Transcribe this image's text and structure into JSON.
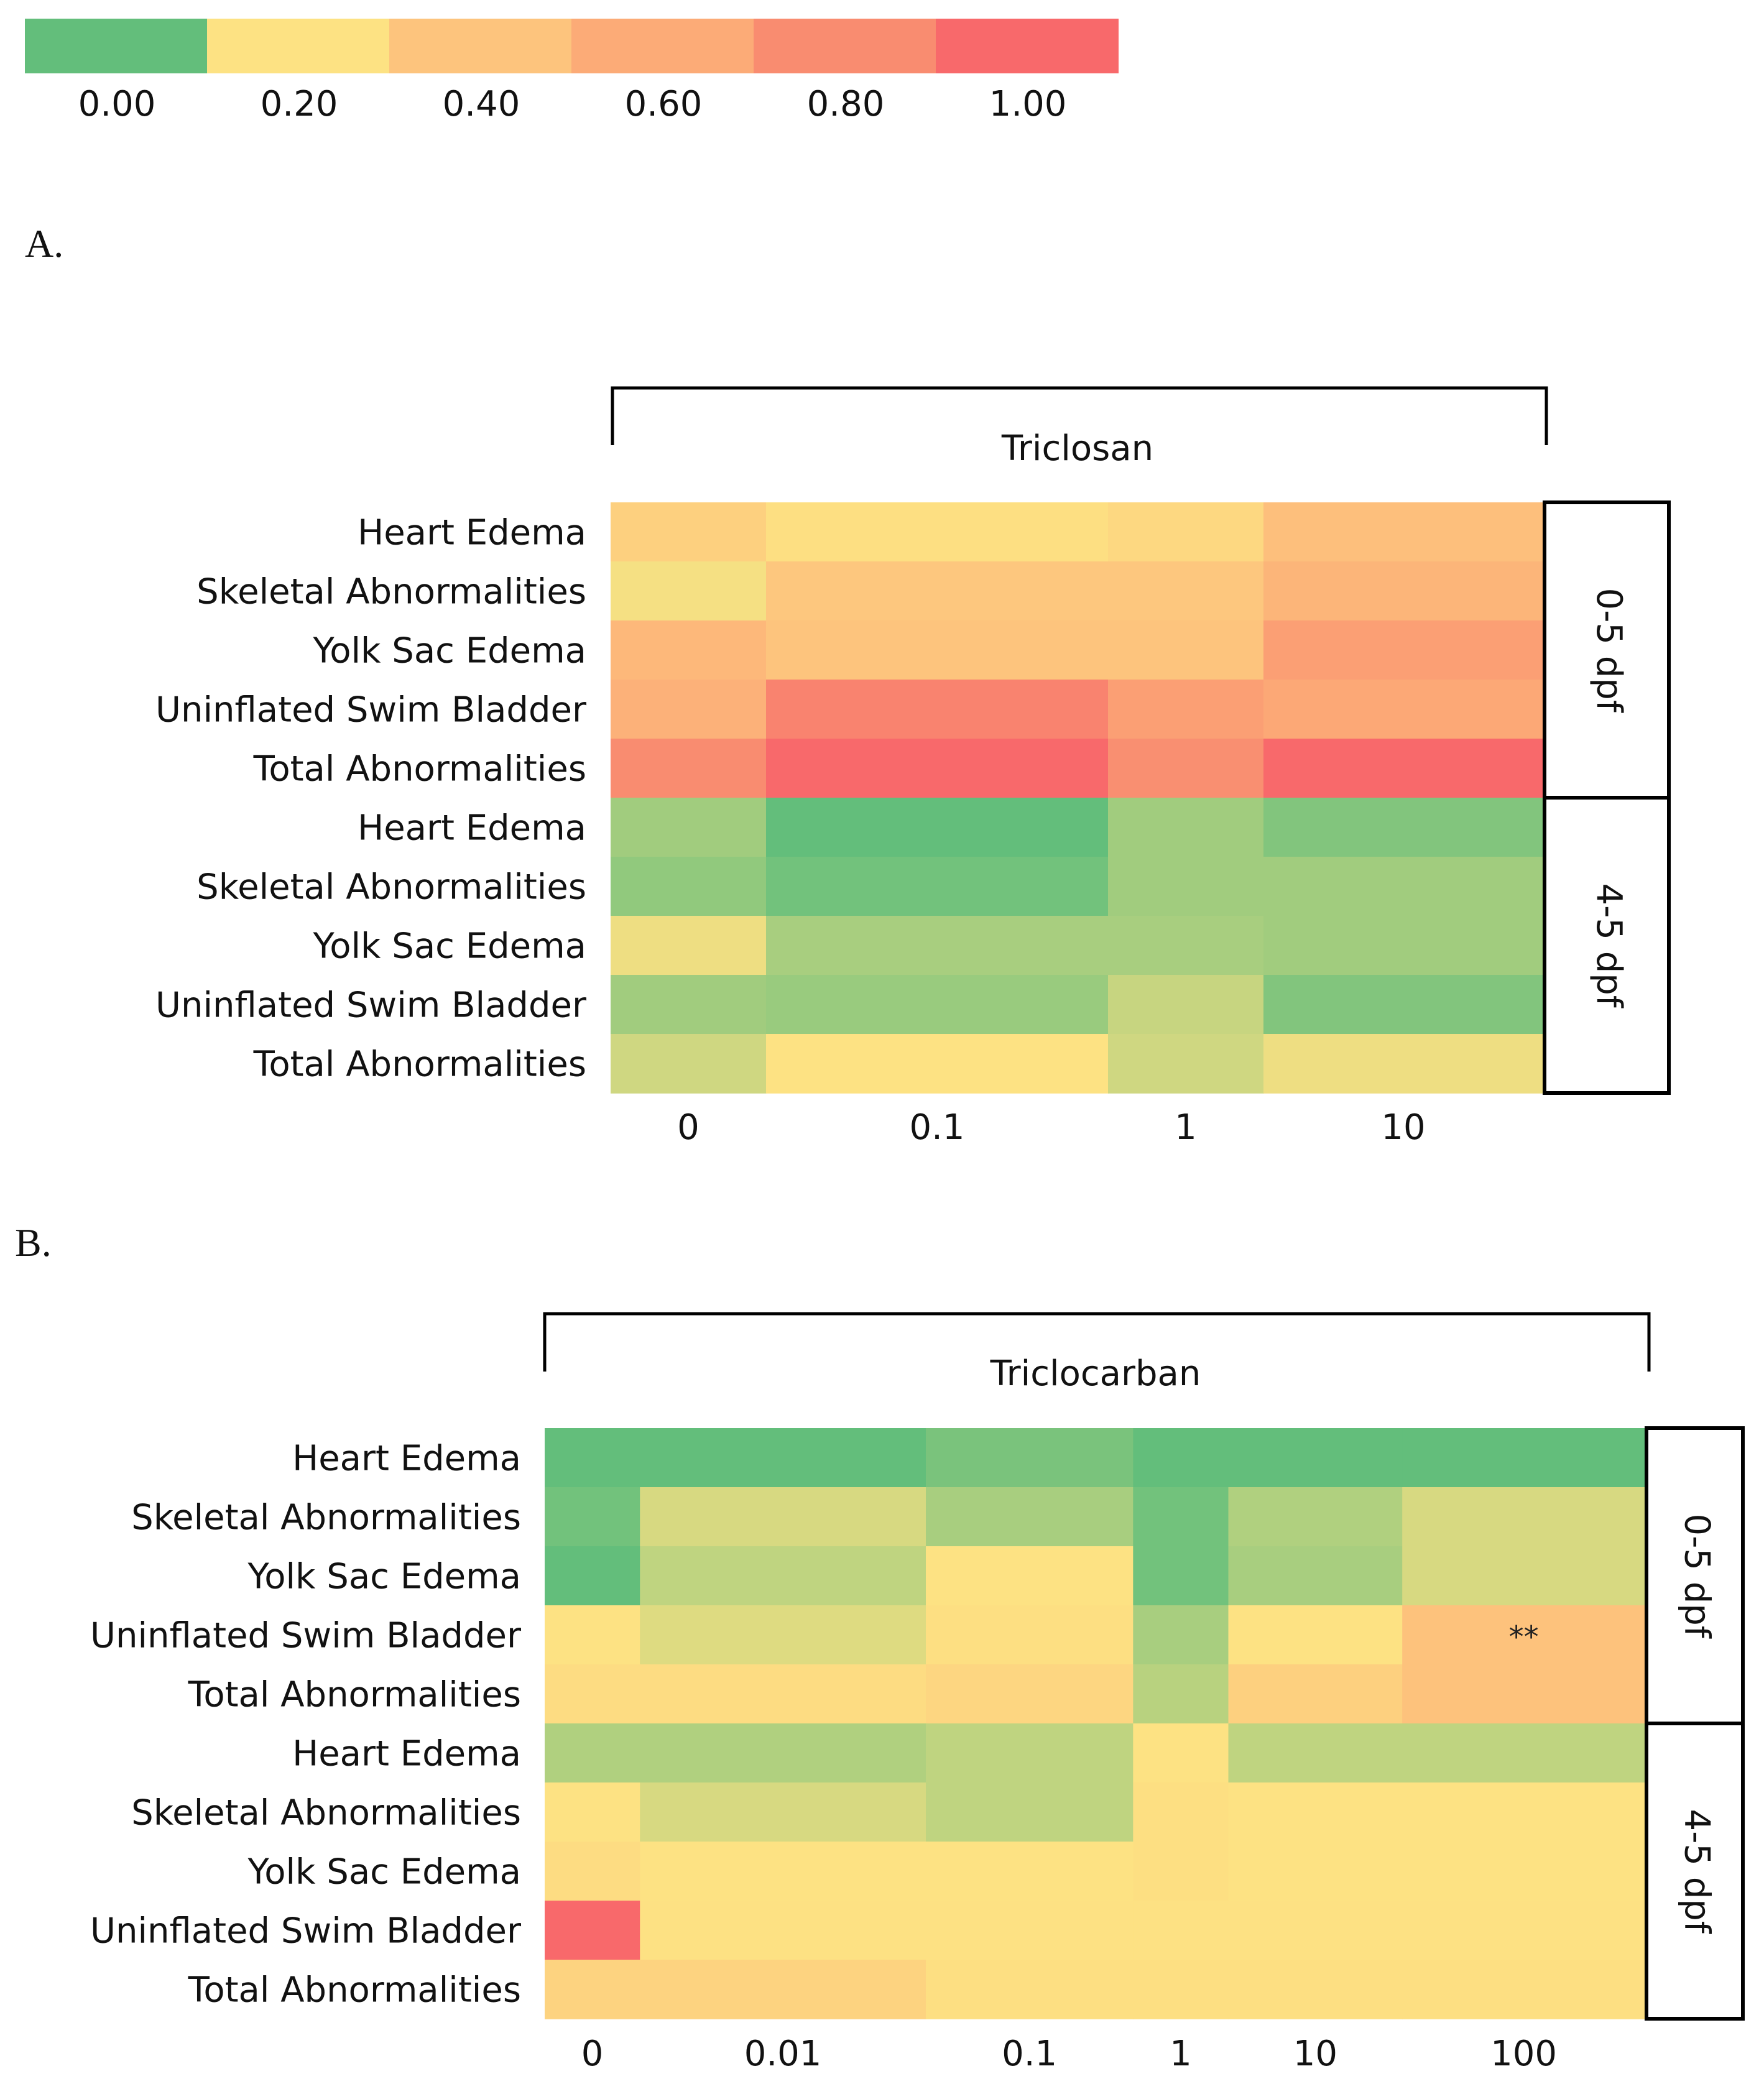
{
  "colors": {
    "scale": [
      "#63be7b",
      "#fde283",
      "#fdc47d",
      "#fcab77",
      "#f98c70",
      "#f8696b"
    ],
    "na": "#ffffff",
    "frame": "#000000"
  },
  "chart_data": {
    "type": "heatmap",
    "color_scale": {
      "stops": [
        0.0,
        0.2,
        0.4,
        0.6,
        0.8,
        1.0
      ],
      "labels": [
        "0.00",
        "0.20",
        "0.40",
        "0.60",
        "0.80",
        "1.00"
      ]
    },
    "panels": [
      {
        "panel_label": "A.",
        "title": "Triclosan",
        "row_labels": [
          "Heart Edema",
          "Skeletal Abnormalities",
          "Yolk Sac Edema",
          "Uninflated Swim Bladder",
          "Total Abnormalities",
          "Heart Edema",
          "Skeletal Abnormalities",
          "Yolk Sac Edema",
          "Uninflated Swim Bladder",
          "Total Abnormalities"
        ],
        "group_labels": [
          "0-5 dpf",
          "4-5 dpf"
        ],
        "group_sizes": [
          5,
          5
        ],
        "column_labels": [
          "0",
          "0.1",
          "1",
          "10"
        ],
        "column_widths": [
          1,
          2.2,
          1,
          1.8
        ],
        "values": [
          [
            0.32,
            0.22,
            0.27,
            0.44
          ],
          [
            0.19,
            0.38,
            0.38,
            0.52
          ],
          [
            0.5,
            0.4,
            0.4,
            0.68
          ],
          [
            0.55,
            0.85,
            0.68,
            0.62
          ],
          [
            0.8,
            1.0,
            0.78,
            1.0
          ],
          [
            0.08,
            0.0,
            0.08,
            0.04
          ],
          [
            0.06,
            0.02,
            0.08,
            0.08
          ],
          [
            0.18,
            0.09,
            0.09,
            0.08
          ],
          [
            0.08,
            0.07,
            0.13,
            0.04
          ],
          [
            0.14,
            0.2,
            0.14,
            0.18
          ]
        ],
        "annotations": []
      },
      {
        "panel_label": "B.",
        "title": "Triclocarban",
        "row_labels": [
          "Heart Edema",
          "Skeletal Abnormalities",
          "Yolk Sac Edema",
          "Uninflated Swim Bladder",
          "Total Abnormalities",
          "Heart Edema",
          "Skeletal Abnormalities",
          "Yolk Sac Edema",
          "Uninflated Swim Bladder",
          "Total Abnormalities"
        ],
        "group_labels": [
          "0-5 dpf",
          "4-5 dpf"
        ],
        "group_sizes": [
          5,
          5
        ],
        "column_labels": [
          "0",
          "0.01",
          "0.1",
          "1",
          "10",
          "100"
        ],
        "column_widths": [
          0.4,
          1.2,
          0.87,
          0.4,
          0.73,
          1.02
        ],
        "values": [
          [
            0.0,
            0.0,
            0.03,
            0.0,
            0.0,
            0.0
          ],
          [
            0.02,
            0.15,
            0.09,
            0.02,
            0.1,
            0.15
          ],
          [
            0.0,
            0.12,
            0.2,
            0.02,
            0.09,
            0.15
          ],
          [
            0.2,
            0.16,
            0.22,
            0.09,
            0.2,
            0.42
          ],
          [
            0.24,
            0.24,
            0.28,
            0.11,
            0.32,
            0.42
          ],
          [
            0.1,
            0.1,
            0.12,
            0.2,
            0.12,
            0.12
          ],
          [
            0.2,
            0.15,
            0.12,
            0.22,
            0.2,
            0.2
          ],
          [
            0.24,
            0.2,
            0.2,
            0.22,
            0.2,
            0.2
          ],
          [
            1.0,
            0.21,
            0.21,
            0.21,
            0.21,
            0.21
          ],
          [
            0.3,
            0.3,
            0.22,
            0.22,
            0.22,
            0.22
          ]
        ],
        "annotations": [
          {
            "row": 3,
            "col": 5,
            "text": "**"
          }
        ]
      }
    ]
  }
}
